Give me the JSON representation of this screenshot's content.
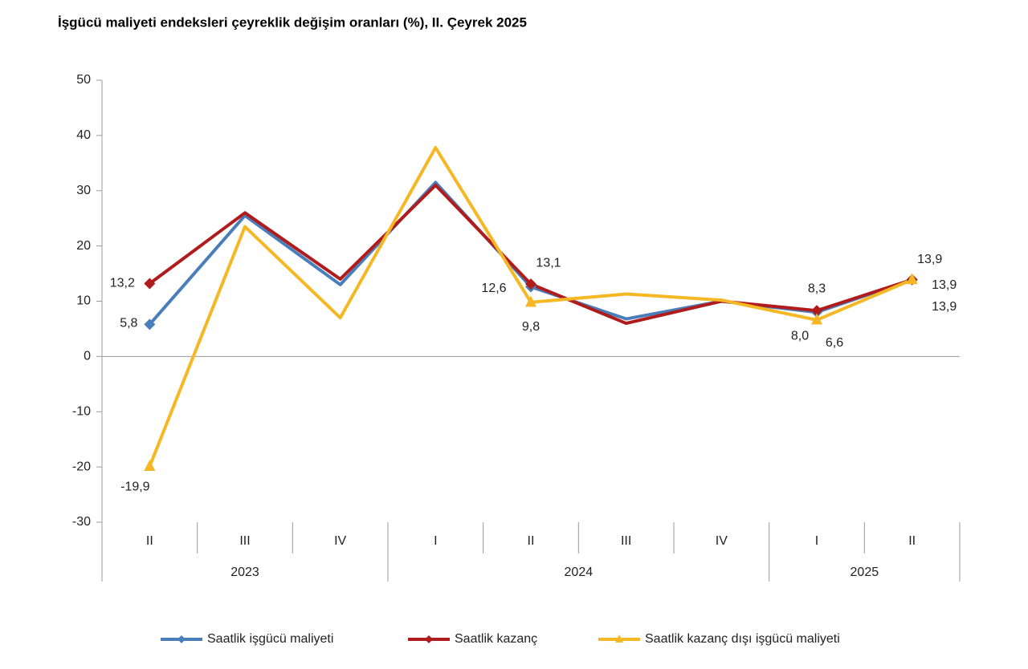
{
  "chart_data": {
    "type": "line",
    "title": "İşgücü maliyeti endeksleri çeyreklik değişim oranları (%), II. Çeyrek 2025",
    "categories": [
      "II",
      "III",
      "IV",
      "I",
      "II",
      "III",
      "IV",
      "I",
      "II"
    ],
    "x_groups": [
      "2023",
      "2024",
      "2025"
    ],
    "ylim": [
      -30,
      50
    ],
    "yticks": [
      -30,
      -20,
      -10,
      0,
      10,
      20,
      30,
      40,
      50
    ],
    "legend": "bottom",
    "series": [
      {
        "name": "Saatlik işgücü maliyeti",
        "color": "#4a7ebb",
        "marker": "diamond",
        "values": [
          5.8,
          25.5,
          13,
          31.5,
          12.6,
          6.8,
          10,
          8.0,
          13.9
        ],
        "value_labels": [
          "5,8",
          null,
          null,
          null,
          "12,6",
          null,
          null,
          "8,0",
          "13,9"
        ]
      },
      {
        "name": "Saatlik kazanç",
        "color": "#b01c1c",
        "marker": "diamond",
        "values": [
          13.2,
          26,
          14,
          31,
          13.1,
          6,
          10,
          8.3,
          13.9
        ],
        "value_labels": [
          "13,2",
          null,
          null,
          null,
          "13,1",
          null,
          null,
          "8,3",
          "13,9"
        ]
      },
      {
        "name": "Saatlik kazanç dışı işgücü maliyeti",
        "color": "#f5b824",
        "marker": "triangle",
        "values": [
          -19.9,
          23.5,
          7,
          37.8,
          9.8,
          11.3,
          10.2,
          6.6,
          13.9
        ],
        "value_labels": [
          "-19,9",
          null,
          null,
          null,
          "9,8",
          null,
          null,
          "6,6",
          "13,9"
        ]
      }
    ]
  }
}
